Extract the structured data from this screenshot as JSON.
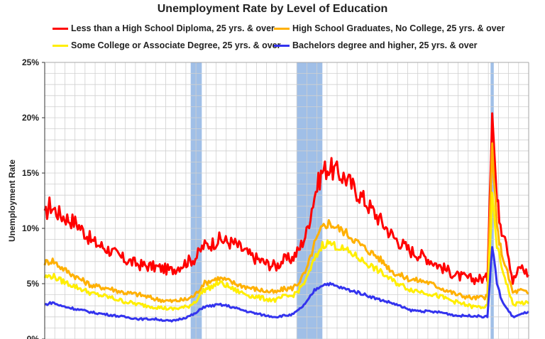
{
  "chart_data": {
    "type": "line",
    "title": "Unemployment Rate by Level of Education",
    "ylabel": "Unemployment Rate",
    "xlabel": "",
    "ylim": [
      0,
      25
    ],
    "yticks": [
      {
        "value": 0,
        "label": "0%"
      },
      {
        "value": 5,
        "label": "5%"
      },
      {
        "value": 10,
        "label": "10%"
      },
      {
        "value": 15,
        "label": "15%"
      },
      {
        "value": 20,
        "label": "20%"
      },
      {
        "value": 25,
        "label": "25%"
      }
    ],
    "xlim": [
      1992.0,
      2022.5
    ],
    "grid": true,
    "legend_placement": "top",
    "recessions": [
      [
        2001.2,
        2001.9
      ],
      [
        2007.9,
        2009.5
      ],
      [
        2020.1,
        2020.3
      ]
    ],
    "series": [
      {
        "name": "Less than a High School Diploma, 25 yrs. & over",
        "color": "#ff0000",
        "x": [
          1992.0,
          1992.3,
          1993.0,
          1994.0,
          1995.0,
          1996.0,
          1997.0,
          1998.0,
          1999.0,
          2000.0,
          2001.0,
          2001.5,
          2002.0,
          2002.5,
          2003.0,
          2003.5,
          2004.0,
          2005.0,
          2006.0,
          2006.6,
          2007.0,
          2007.6,
          2008.0,
          2008.5,
          2009.0,
          2009.5,
          2009.9,
          2010.5,
          2011.0,
          2011.5,
          2012.0,
          2013.0,
          2014.0,
          2015.0,
          2016.0,
          2017.0,
          2018.0,
          2019.0,
          2019.9,
          2020.2,
          2020.3,
          2020.5,
          2020.8,
          2021.0,
          2021.5,
          2022.0,
          2022.5
        ],
        "y": [
          11.0,
          12.1,
          11.2,
          10.5,
          8.8,
          8.1,
          7.2,
          6.7,
          6.5,
          6.2,
          7.0,
          7.3,
          8.4,
          8.6,
          9.0,
          8.8,
          8.6,
          7.5,
          6.8,
          6.6,
          7.1,
          7.3,
          8.0,
          9.6,
          13.0,
          15.2,
          15.5,
          15.0,
          14.5,
          13.6,
          12.8,
          11.0,
          9.2,
          8.0,
          7.4,
          6.5,
          5.7,
          5.4,
          5.5,
          21.2,
          18.0,
          12.5,
          10.0,
          9.8,
          5.2,
          6.6,
          5.8
        ]
      },
      {
        "name": "High School Graduates, No College, 25 yrs. & over",
        "color": "#ffb000",
        "x": [
          1992.0,
          1992.5,
          1993.0,
          1994.0,
          1995.0,
          1996.0,
          1997.0,
          1998.0,
          1999.0,
          2000.0,
          2001.0,
          2001.5,
          2002.0,
          2002.5,
          2003.0,
          2003.5,
          2004.0,
          2005.0,
          2006.0,
          2006.6,
          2007.0,
          2007.6,
          2008.0,
          2008.5,
          2009.0,
          2009.5,
          2009.9,
          2010.5,
          2011.0,
          2011.5,
          2012.0,
          2013.0,
          2014.0,
          2015.0,
          2016.0,
          2017.0,
          2018.0,
          2019.0,
          2019.9,
          2020.2,
          2020.3,
          2020.5,
          2020.8,
          2021.0,
          2021.5,
          2022.0,
          2022.5
        ],
        "y": [
          6.9,
          7.1,
          6.5,
          5.6,
          4.8,
          4.6,
          4.2,
          4.0,
          3.6,
          3.4,
          3.6,
          4.0,
          5.0,
          5.3,
          5.5,
          5.3,
          5.0,
          4.6,
          4.3,
          4.2,
          4.5,
          4.6,
          5.1,
          6.2,
          8.6,
          10.1,
          10.5,
          10.0,
          9.6,
          9.0,
          8.4,
          7.4,
          6.0,
          5.4,
          5.2,
          4.6,
          4.0,
          3.7,
          3.8,
          17.6,
          15.0,
          10.0,
          7.8,
          6.8,
          4.2,
          4.4,
          4.1
        ]
      },
      {
        "name": "Some College or Associate Degree, 25 yrs. & over",
        "color": "#ffee00",
        "x": [
          1992.0,
          1992.5,
          1993.0,
          1994.0,
          1995.0,
          1996.0,
          1997.0,
          1998.0,
          1999.0,
          2000.0,
          2001.0,
          2001.5,
          2002.0,
          2002.5,
          2003.0,
          2003.5,
          2004.0,
          2005.0,
          2006.0,
          2006.6,
          2007.0,
          2007.6,
          2008.0,
          2008.5,
          2009.0,
          2009.5,
          2009.9,
          2010.5,
          2011.0,
          2011.5,
          2012.0,
          2013.0,
          2014.0,
          2015.0,
          2016.0,
          2017.0,
          2018.0,
          2019.0,
          2019.9,
          2020.2,
          2020.3,
          2020.5,
          2020.8,
          2021.0,
          2021.5,
          2022.0,
          2022.5
        ],
        "y": [
          5.6,
          5.7,
          5.3,
          4.7,
          4.1,
          3.8,
          3.4,
          3.1,
          2.9,
          2.7,
          2.9,
          3.4,
          4.4,
          4.7,
          5.1,
          4.8,
          4.4,
          3.9,
          3.6,
          3.5,
          3.8,
          3.9,
          4.4,
          5.4,
          7.2,
          8.5,
          8.7,
          8.3,
          8.0,
          7.6,
          7.1,
          6.2,
          5.2,
          4.5,
          4.2,
          3.8,
          3.3,
          2.9,
          2.9,
          12.8,
          11.5,
          8.5,
          6.5,
          5.6,
          3.1,
          3.3,
          3.2
        ]
      },
      {
        "name": "Bachelors degree and higher, 25 yrs. & over",
        "color": "#3333ee",
        "x": [
          1992.0,
          1992.5,
          1993.0,
          1994.0,
          1995.0,
          1996.0,
          1997.0,
          1998.0,
          1999.0,
          2000.0,
          2001.0,
          2001.5,
          2002.0,
          2002.5,
          2003.0,
          2003.5,
          2004.0,
          2005.0,
          2006.0,
          2006.6,
          2007.0,
          2007.6,
          2008.0,
          2008.5,
          2009.0,
          2009.5,
          2009.9,
          2010.5,
          2011.0,
          2011.5,
          2012.0,
          2013.0,
          2014.0,
          2015.0,
          2016.0,
          2017.0,
          2018.0,
          2019.0,
          2019.9,
          2020.2,
          2020.3,
          2020.5,
          2020.8,
          2021.0,
          2021.5,
          2022.0,
          2022.5
        ],
        "y": [
          3.1,
          3.3,
          3.0,
          2.7,
          2.4,
          2.2,
          2.0,
          1.8,
          1.8,
          1.6,
          2.0,
          2.3,
          2.9,
          3.0,
          3.1,
          3.0,
          2.8,
          2.4,
          2.1,
          2.0,
          2.1,
          2.2,
          2.6,
          3.3,
          4.4,
          4.9,
          5.0,
          4.7,
          4.5,
          4.3,
          4.1,
          3.6,
          3.2,
          2.6,
          2.5,
          2.4,
          2.1,
          2.1,
          2.0,
          8.4,
          7.5,
          5.0,
          3.5,
          3.0,
          2.0,
          2.2,
          2.5
        ]
      }
    ]
  }
}
